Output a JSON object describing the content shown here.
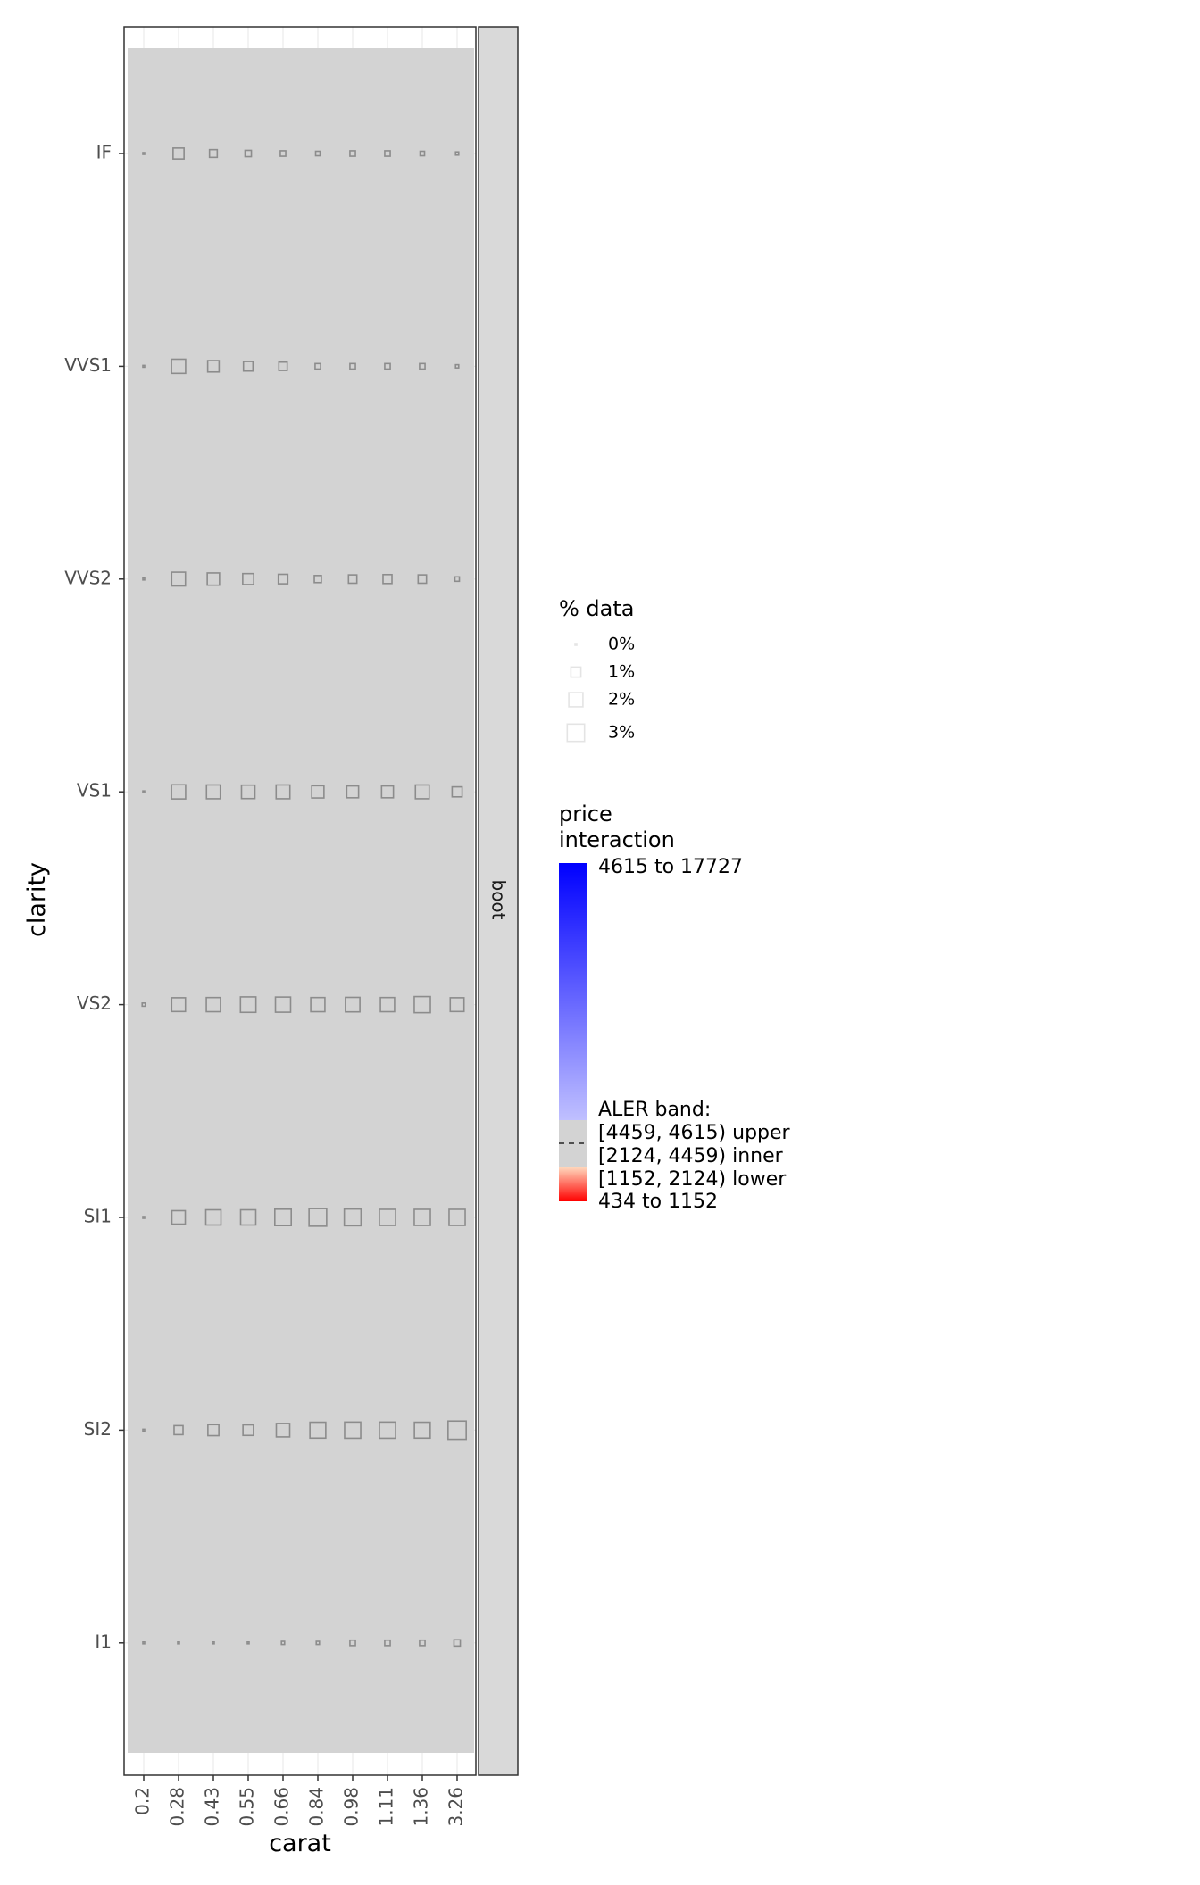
{
  "chart_data": {
    "type": "heatmap",
    "xlabel": "carat",
    "ylabel": "clarity",
    "facet": "boot",
    "x_categories": [
      "0.2",
      "0.28",
      "0.43",
      "0.55",
      "0.66",
      "0.84",
      "0.98",
      "1.11",
      "1.36",
      "3.26"
    ],
    "y_categories": [
      "IF",
      "VVS1",
      "VVS2",
      "VS1",
      "VS2",
      "SI1",
      "SI2",
      "I1"
    ],
    "cell_fill": "#d3d3d3",
    "cell_band": "[2124, 4459) inner",
    "pct_data": [
      [
        0.0,
        1.2,
        0.6,
        0.4,
        0.3,
        0.2,
        0.3,
        0.3,
        0.2,
        0.1
      ],
      [
        0.0,
        2.0,
        1.3,
        0.9,
        0.7,
        0.3,
        0.3,
        0.3,
        0.3,
        0.1
      ],
      [
        0.0,
        1.9,
        1.5,
        1.2,
        0.9,
        0.5,
        0.7,
        0.8,
        0.7,
        0.2
      ],
      [
        0.0,
        2.0,
        1.9,
        1.8,
        1.9,
        1.5,
        1.4,
        1.4,
        1.9,
        1.0
      ],
      [
        0.1,
        1.9,
        2.0,
        2.4,
        2.3,
        2.0,
        2.1,
        2.0,
        2.6,
        1.9
      ],
      [
        0.0,
        1.8,
        2.3,
        2.3,
        2.7,
        3.1,
        2.8,
        2.6,
        2.6,
        2.6
      ],
      [
        0.0,
        0.8,
        1.2,
        1.1,
        1.8,
        2.5,
        2.6,
        2.6,
        2.5,
        3.3
      ],
      [
        0.0,
        0.0,
        0.0,
        0.0,
        0.1,
        0.1,
        0.3,
        0.3,
        0.3,
        0.4
      ]
    ],
    "size_legend": {
      "title": "% data",
      "entries": [
        {
          "label": "0%",
          "value": 0
        },
        {
          "label": "1%",
          "value": 1
        },
        {
          "label": "2%",
          "value": 2
        },
        {
          "label": "3%",
          "value": 3
        }
      ]
    },
    "color_legend": {
      "title_line1": "price",
      "title_line2": "interaction",
      "top_label": "4615 to 17727",
      "band_title": "ALER band:",
      "upper": "[4459, 4615) upper",
      "inner": "[2124, 4459) inner",
      "lower": "[1152, 2124) lower",
      "bottom_label": "434 to 1152",
      "high_color": "#0000ff",
      "mid_high_color": "#c0c0ff",
      "band_color": "#d3d3d3",
      "mid_low_color": "#ffdcc0",
      "low_color": "#ff0000"
    }
  }
}
